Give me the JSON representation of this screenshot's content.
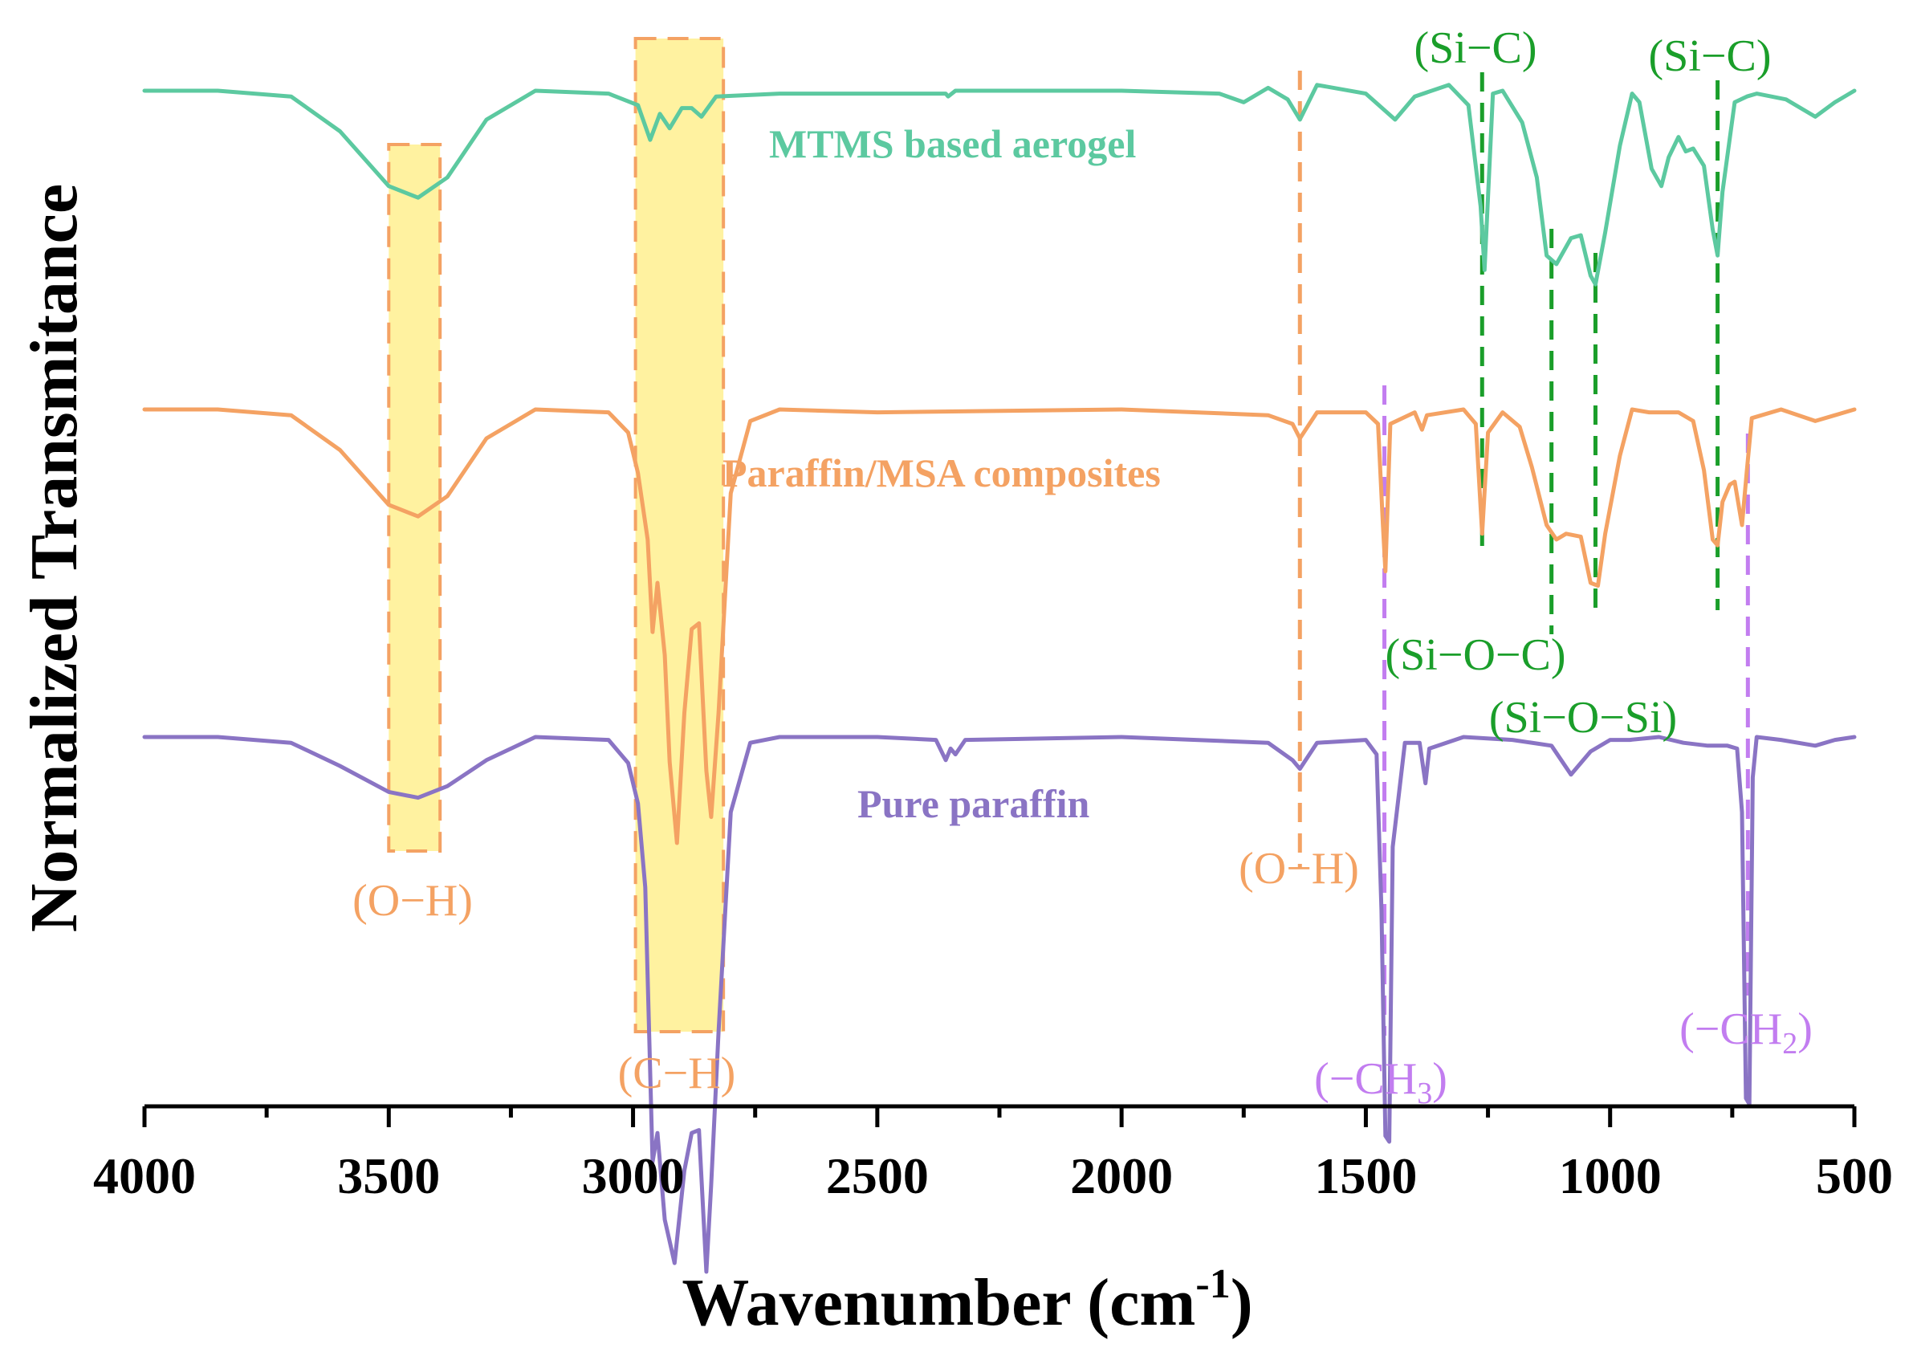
{
  "chart_data": {
    "type": "line",
    "title": "",
    "xlabel": "Wavenumber (cm",
    "xlabel_sup": "-1",
    "xlabel_end": ")",
    "ylabel": "Normalized Transmitance",
    "xlim": [
      4000,
      500
    ],
    "x_reversed": true,
    "xticks": [
      "4000",
      "3500",
      "3000",
      "2500",
      "2000",
      "1500",
      "1000",
      "500"
    ],
    "grid": false,
    "colors": {
      "MTMS": "#5cc9a0",
      "MSA": "#f4a263",
      "PP": "#8a74c4",
      "highlight": "#fff2a0",
      "green": "#1a9e2a",
      "purple": "#c27df0"
    },
    "series": [
      {
        "name": "MTMS based aerogel",
        "color": "#5cc9a0",
        "baseline": 100,
        "points": [
          [
            4000,
            100
          ],
          [
            3850,
            100
          ],
          [
            3700,
            98
          ],
          [
            3600,
            86
          ],
          [
            3500,
            67
          ],
          [
            3440,
            63
          ],
          [
            3380,
            70
          ],
          [
            3300,
            90
          ],
          [
            3200,
            100
          ],
          [
            3050,
            99
          ],
          [
            2990,
            95
          ],
          [
            2965,
            83
          ],
          [
            2945,
            92
          ],
          [
            2925,
            87
          ],
          [
            2900,
            94
          ],
          [
            2880,
            94
          ],
          [
            2860,
            91
          ],
          [
            2830,
            98
          ],
          [
            2700,
            99
          ],
          [
            2500,
            99
          ],
          [
            2360,
            99
          ],
          [
            2355,
            98
          ],
          [
            2340,
            100
          ],
          [
            2000,
            100
          ],
          [
            1800,
            99
          ],
          [
            1750,
            96
          ],
          [
            1700,
            101
          ],
          [
            1660,
            97
          ],
          [
            1635,
            90
          ],
          [
            1600,
            102
          ],
          [
            1500,
            99
          ],
          [
            1440,
            90
          ],
          [
            1400,
            98
          ],
          [
            1330,
            102
          ],
          [
            1290,
            95
          ],
          [
            1265,
            60
          ],
          [
            1257,
            38
          ],
          [
            1240,
            99
          ],
          [
            1220,
            100
          ],
          [
            1180,
            89
          ],
          [
            1150,
            70
          ],
          [
            1130,
            43
          ],
          [
            1110,
            40
          ],
          [
            1080,
            49
          ],
          [
            1060,
            50
          ],
          [
            1040,
            36
          ],
          [
            1030,
            33
          ],
          [
            1010,
            51
          ],
          [
            980,
            81
          ],
          [
            955,
            99
          ],
          [
            940,
            96
          ],
          [
            915,
            73
          ],
          [
            895,
            67
          ],
          [
            880,
            77
          ],
          [
            860,
            84
          ],
          [
            845,
            79
          ],
          [
            830,
            80
          ],
          [
            808,
            74
          ],
          [
            790,
            52
          ],
          [
            780,
            43
          ],
          [
            770,
            65
          ],
          [
            745,
            96
          ],
          [
            720,
            98
          ],
          [
            700,
            99
          ],
          [
            640,
            97
          ],
          [
            580,
            91
          ],
          [
            540,
            96
          ],
          [
            500,
            100
          ]
        ]
      },
      {
        "name": "Paraffin/MSA composites",
        "color": "#f4a263",
        "baseline": 100,
        "points": [
          [
            4000,
            100
          ],
          [
            3850,
            100
          ],
          [
            3700,
            98
          ],
          [
            3600,
            86
          ],
          [
            3500,
            67
          ],
          [
            3440,
            63
          ],
          [
            3380,
            70
          ],
          [
            3300,
            90
          ],
          [
            3200,
            100
          ],
          [
            3050,
            99
          ],
          [
            3010,
            92
          ],
          [
            2990,
            78
          ],
          [
            2970,
            55
          ],
          [
            2960,
            23
          ],
          [
            2950,
            40
          ],
          [
            2935,
            15
          ],
          [
            2925,
            -22
          ],
          [
            2910,
            -50
          ],
          [
            2895,
            -5
          ],
          [
            2880,
            24
          ],
          [
            2865,
            26
          ],
          [
            2850,
            -25
          ],
          [
            2840,
            -41
          ],
          [
            2825,
            -5
          ],
          [
            2800,
            71
          ],
          [
            2760,
            96
          ],
          [
            2700,
            100
          ],
          [
            2500,
            99
          ],
          [
            2000,
            100
          ],
          [
            1700,
            98
          ],
          [
            1650,
            95
          ],
          [
            1635,
            90
          ],
          [
            1600,
            99
          ],
          [
            1500,
            99
          ],
          [
            1475,
            95
          ],
          [
            1465,
            60
          ],
          [
            1460,
            44
          ],
          [
            1450,
            95
          ],
          [
            1400,
            99
          ],
          [
            1385,
            93
          ],
          [
            1375,
            98
          ],
          [
            1300,
            100
          ],
          [
            1275,
            95
          ],
          [
            1262,
            57
          ],
          [
            1250,
            92
          ],
          [
            1220,
            99
          ],
          [
            1185,
            94
          ],
          [
            1160,
            80
          ],
          [
            1130,
            60
          ],
          [
            1110,
            55
          ],
          [
            1090,
            57
          ],
          [
            1060,
            56
          ],
          [
            1040,
            40
          ],
          [
            1025,
            39
          ],
          [
            1010,
            57
          ],
          [
            980,
            84
          ],
          [
            955,
            100
          ],
          [
            920,
            99
          ],
          [
            860,
            99
          ],
          [
            830,
            96
          ],
          [
            808,
            79
          ],
          [
            790,
            55
          ],
          [
            780,
            53
          ],
          [
            770,
            68
          ],
          [
            755,
            74
          ],
          [
            745,
            75
          ],
          [
            730,
            60
          ],
          [
            720,
            79
          ],
          [
            710,
            97
          ],
          [
            650,
            100
          ],
          [
            580,
            96
          ],
          [
            540,
            98
          ],
          [
            500,
            100
          ]
        ]
      },
      {
        "name": "Pure paraffin",
        "color": "#8a74c4",
        "baseline": 100,
        "points": [
          [
            4000,
            100
          ],
          [
            3850,
            100
          ],
          [
            3700,
            98
          ],
          [
            3600,
            90
          ],
          [
            3500,
            81
          ],
          [
            3440,
            79
          ],
          [
            3380,
            83
          ],
          [
            3300,
            92
          ],
          [
            3200,
            100
          ],
          [
            3050,
            99
          ],
          [
            3010,
            91
          ],
          [
            2990,
            77
          ],
          [
            2975,
            48
          ],
          [
            2960,
            -47
          ],
          [
            2950,
            -37
          ],
          [
            2935,
            -67
          ],
          [
            2915,
            -82
          ],
          [
            2895,
            -50
          ],
          [
            2880,
            -37
          ],
          [
            2865,
            -36
          ],
          [
            2850,
            -85
          ],
          [
            2840,
            -55
          ],
          [
            2825,
            -2
          ],
          [
            2800,
            74
          ],
          [
            2760,
            98
          ],
          [
            2700,
            100
          ],
          [
            2500,
            100
          ],
          [
            2380,
            99
          ],
          [
            2360,
            92
          ],
          [
            2350,
            96
          ],
          [
            2340,
            94
          ],
          [
            2320,
            99
          ],
          [
            2000,
            100
          ],
          [
            1700,
            98
          ],
          [
            1650,
            92
          ],
          [
            1635,
            89
          ],
          [
            1600,
            98
          ],
          [
            1500,
            99
          ],
          [
            1478,
            94
          ],
          [
            1468,
            40
          ],
          [
            1460,
            -38
          ],
          [
            1452,
            -40
          ],
          [
            1445,
            62
          ],
          [
            1420,
            98
          ],
          [
            1390,
            98
          ],
          [
            1378,
            84
          ],
          [
            1370,
            96
          ],
          [
            1300,
            100
          ],
          [
            1200,
            99
          ],
          [
            1120,
            97
          ],
          [
            1080,
            87
          ],
          [
            1040,
            95
          ],
          [
            1000,
            99
          ],
          [
            960,
            99
          ],
          [
            900,
            100
          ],
          [
            850,
            98
          ],
          [
            800,
            97
          ],
          [
            760,
            97
          ],
          [
            740,
            96
          ],
          [
            730,
            74
          ],
          [
            722,
            -25
          ],
          [
            715,
            -27
          ],
          [
            708,
            86
          ],
          [
            700,
            100
          ],
          [
            650,
            99
          ],
          [
            580,
            97
          ],
          [
            540,
            99
          ],
          [
            500,
            100
          ]
        ]
      }
    ],
    "series_labels": [
      "MTMS based aerogel",
      "Paraffin/MSA composites",
      "Pure paraffin"
    ],
    "highlight_bands": [
      {
        "x": [
          3500,
          3395
        ]
      },
      {
        "x": [
          2995,
          2815
        ]
      }
    ],
    "annotations": {
      "oh_left": "(O−H)",
      "ch": "(C−H)",
      "oh_right": "(O−H)",
      "sic_1": "(Si−C)",
      "sic_2": "(Si−C)",
      "sioc": "(Si−O−C)",
      "siosi": "(Si−O−Si)",
      "ch3_main": "(−CH",
      "ch3_sub": "3",
      "ch3_end": ")",
      "ch2_main": "(−CH",
      "ch2_sub": "2",
      "ch2_end": ")"
    },
    "marker_lines": [
      {
        "x": 1635,
        "color": "orange"
      },
      {
        "x": 1262,
        "color": "green"
      },
      {
        "x": 1120,
        "color": "green"
      },
      {
        "x": 1030,
        "color": "green"
      },
      {
        "x": 780,
        "color": "green"
      },
      {
        "x": 1462,
        "color": "purple"
      },
      {
        "x": 718,
        "color": "purple"
      }
    ]
  }
}
